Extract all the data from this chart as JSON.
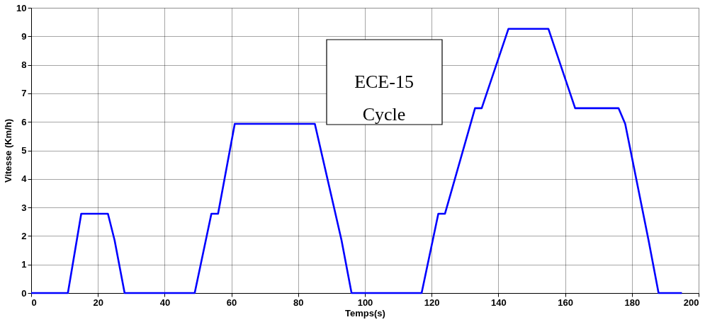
{
  "chart_data": {
    "type": "line",
    "xlabel": "Temps(s)",
    "ylabel": "Vitesse (Km/h)",
    "x": [
      0,
      11,
      15,
      23,
      25,
      28,
      49,
      54,
      56,
      61,
      85,
      93,
      96,
      117,
      122,
      124,
      133,
      135,
      143,
      155,
      163,
      176,
      178,
      185,
      188,
      195
    ],
    "series": [
      {
        "color": "#0000ff",
        "values": [
          0,
          0,
          2.78,
          2.78,
          1.85,
          0,
          0,
          2.78,
          2.78,
          5.93,
          5.93,
          1.85,
          0,
          0,
          2.78,
          2.78,
          6.48,
          6.48,
          9.26,
          9.26,
          6.48,
          6.48,
          5.93,
          1.85,
          0,
          0
        ]
      }
    ],
    "xlim": [
      0,
      200
    ],
    "xticks": [
      0,
      20,
      40,
      60,
      80,
      100,
      120,
      140,
      160,
      180,
      200
    ],
    "ylim": [
      0,
      10
    ],
    "yticks": [
      0,
      1,
      2,
      3,
      4,
      5,
      6,
      7,
      8,
      9,
      10
    ],
    "grid": true,
    "annotations": [
      "ECE-15 Cycle"
    ]
  }
}
